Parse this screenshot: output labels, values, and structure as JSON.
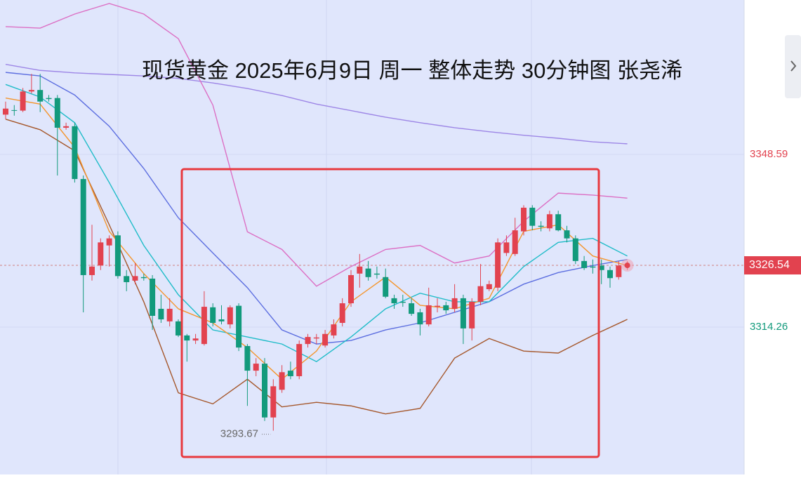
{
  "chart_data": {
    "type": "candlestick",
    "title": "现货黄金 2025年6月9日 周一 整体走势 30分钟图 张尧浠",
    "up_color": "#e2424f",
    "down_color": "#129a7c",
    "ylim": [
      3284.96,
      3379.29
    ],
    "yticks": [
      3314.26,
      3348.59
    ],
    "ytick_colors": [
      "#129a7c",
      "#e2424f"
    ],
    "last_price": 3326.54,
    "low_label": 3293.67,
    "open": [
      3356.5,
      3357.4,
      3357.3,
      3361.1,
      3361.4,
      3359.8,
      3359.8,
      3353.9,
      3354.2,
      3343.7,
      3324.6,
      3326.5,
      3330.5,
      3332.5,
      3324.4,
      3323.5,
      3324.2,
      3323.9,
      3317.9,
      3315.4,
      3315.4,
      3312.6,
      3311.6,
      3310.9,
      3318.2,
      3315.8,
      3314.8,
      3318.5,
      3310.5,
      3305.6,
      3307.0,
      3296.3,
      3301.8,
      3305.6,
      3304.5,
      3310.9,
      3312.0,
      3310.6,
      3312.6,
      3315.1,
      3319.0,
      3324.9,
      3325.9,
      3324.9,
      3324.2,
      3320.0,
      3319.3,
      3319.0,
      3317.2,
      3314.8,
      3318.3,
      3318.6,
      3317.9,
      3320.0,
      3314.0,
      3319.3,
      3321.8,
      3322.1,
      3329.0,
      3328.8,
      3333.3,
      3338.0,
      3334.4,
      3333.9,
      3336.7,
      3333.5,
      3331.9,
      3327.4,
      3326.3,
      3326.5,
      3325.6,
      3324.2,
      3326.3
    ],
    "high": [
      3359.1,
      3358.4,
      3361.8,
      3364.6,
      3364.6,
      3360.4,
      3360.4,
      3354.9,
      3354.9,
      3344.4,
      3334.6,
      3331.9,
      3332.5,
      3333.3,
      3325.6,
      3327.0,
      3324.9,
      3324.6,
      3320.7,
      3320.0,
      3315.8,
      3312.9,
      3312.9,
      3321.4,
      3319.0,
      3318.6,
      3318.6,
      3319.0,
      3310.9,
      3308.1,
      3308.1,
      3303.9,
      3306.7,
      3307.4,
      3311.6,
      3312.9,
      3312.9,
      3313.7,
      3315.8,
      3320.0,
      3325.6,
      3328.8,
      3327.4,
      3326.3,
      3325.9,
      3320.7,
      3320.7,
      3320.0,
      3317.9,
      3322.1,
      3320.0,
      3319.3,
      3322.8,
      3320.7,
      3320.0,
      3326.8,
      3323.5,
      3331.9,
      3332.5,
      3336.0,
      3338.5,
      3338.5,
      3335.3,
      3337.4,
      3337.4,
      3334.4,
      3332.5,
      3328.4,
      3327.7,
      3327.7,
      3326.3,
      3327.4,
      3327.4
    ],
    "low": [
      3355.6,
      3356.3,
      3357.0,
      3360.7,
      3357.0,
      3359.1,
      3344.4,
      3353.5,
      3343.0,
      3317.2,
      3323.5,
      3325.6,
      3326.3,
      3323.9,
      3321.4,
      3322.8,
      3323.5,
      3313.7,
      3315.1,
      3314.4,
      3312.3,
      3307.4,
      3310.9,
      3310.6,
      3314.4,
      3314.8,
      3314.0,
      3309.5,
      3298.6,
      3304.5,
      3295.6,
      3293.67,
      3301.2,
      3303.9,
      3303.9,
      3310.2,
      3310.9,
      3310.2,
      3312.0,
      3314.4,
      3318.3,
      3322.1,
      3323.5,
      3323.9,
      3320.0,
      3317.9,
      3318.3,
      3316.5,
      3312.6,
      3314.4,
      3317.2,
      3316.9,
      3317.2,
      3310.9,
      3311.6,
      3318.6,
      3321.4,
      3321.4,
      3328.4,
      3328.4,
      3332.5,
      3333.5,
      3333.3,
      3333.3,
      3333.3,
      3331.1,
      3326.8,
      3325.6,
      3324.9,
      3322.8,
      3322.1,
      3323.7,
      3325.6
    ],
    "close": [
      3357.7,
      3357.3,
      3361.1,
      3361.4,
      3359.1,
      3359.6,
      3353.9,
      3354.2,
      3343.7,
      3324.6,
      3326.3,
      3331.1,
      3331.9,
      3324.4,
      3323.2,
      3324.4,
      3324.0,
      3316.5,
      3315.8,
      3317.9,
      3312.6,
      3311.6,
      3312.0,
      3318.3,
      3315.1,
      3315.4,
      3318.2,
      3310.2,
      3305.6,
      3307.0,
      3296.3,
      3302.5,
      3305.3,
      3304.5,
      3310.9,
      3312.3,
      3312.2,
      3312.9,
      3314.8,
      3319.0,
      3324.6,
      3326.3,
      3324.2,
      3324.7,
      3320.3,
      3319.0,
      3319.1,
      3316.9,
      3314.8,
      3318.6,
      3318.5,
      3317.6,
      3320.0,
      3314.0,
      3319.3,
      3322.4,
      3322.8,
      3331.1,
      3331.1,
      3333.5,
      3338.0,
      3334.4,
      3334.2,
      3336.7,
      3333.5,
      3331.9,
      3327.4,
      3326.0,
      3326.1,
      3325.6,
      3324.0,
      3326.5,
      3326.54
    ],
    "overlay_x": [
      0,
      4,
      8,
      12,
      16,
      20,
      24,
      28,
      32,
      36,
      40,
      44,
      48,
      52,
      56,
      60,
      64,
      68,
      72
    ],
    "lines": [
      {
        "color": "#9d86e6",
        "values": [
          3366.5,
          3365.3,
          3364.8,
          3364.5,
          3364.2,
          3363.7,
          3362.8,
          3361.7,
          3360.3,
          3358.6,
          3357.3,
          3356.0,
          3354.9,
          3353.9,
          3353.1,
          3352.4,
          3351.8,
          3351.1,
          3350.7
        ]
      },
      {
        "color": "#dc6fc4",
        "values": [
          3374.0,
          3373.7,
          3376.5,
          3378.6,
          3376.5,
          3371.6,
          3358.4,
          3333.2,
          3329.7,
          3322.4,
          3326.3,
          3329.7,
          3330.5,
          3327.0,
          3328.4,
          3335.3,
          3340.9,
          3340.5,
          3339.9
        ]
      },
      {
        "color": "#a5572b",
        "values": [
          3355.6,
          3353.5,
          3349.3,
          3334.6,
          3319.3,
          3301.2,
          3299.0,
          3303.9,
          3298.4,
          3299.3,
          3298.6,
          3297.0,
          3298.1,
          3308.1,
          3312.0,
          3309.5,
          3309.1,
          3312.6,
          3315.8
        ]
      },
      {
        "color": "#5c6ee0",
        "values": [
          3364.9,
          3364.2,
          3360.4,
          3354.2,
          3345.8,
          3336.0,
          3329.0,
          3322.1,
          3313.7,
          3310.9,
          3311.6,
          3313.7,
          3315.1,
          3317.2,
          3319.3,
          3322.8,
          3325.1,
          3326.5,
          3327.7
        ]
      },
      {
        "color": "#1fbcc8",
        "values": [
          3362.5,
          3360.0,
          3354.9,
          3343.0,
          3330.5,
          3320.7,
          3313.7,
          3312.3,
          3310.9,
          3307.4,
          3312.3,
          3317.9,
          3321.0,
          3319.3,
          3319.3,
          3326.3,
          3331.1,
          3331.9,
          3328.4
        ]
      },
      {
        "color": "#f4962e",
        "values": [
          3359.8,
          3358.6,
          3350.0,
          3333.3,
          3324.9,
          3317.9,
          3315.1,
          3310.2,
          3303.9,
          3309.5,
          3319.3,
          3324.2,
          3318.6,
          3317.9,
          3320.0,
          3333.3,
          3334.6,
          3328.4,
          3326.5
        ]
      }
    ]
  }
}
